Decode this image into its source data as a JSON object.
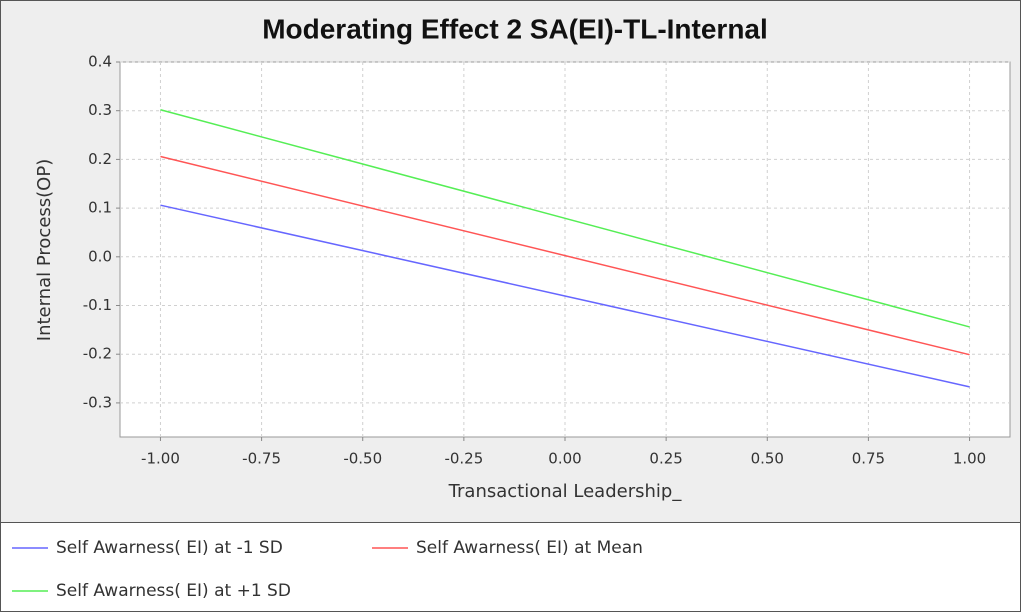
{
  "chart_data": {
    "type": "line",
    "title": "Moderating Effect 2 SA(EI)-TL-Internal",
    "xlabel": "Transactional Leadership_",
    "ylabel": "Internal Process(OP)",
    "x": [
      -1,
      1
    ],
    "series": [
      {
        "name": "Self Awarness( EI) at -1 SD",
        "color": "#6666ff",
        "values": [
          0.106,
          -0.267
        ]
      },
      {
        "name": "Self Awarness( EI) at Mean",
        "color": "#ff5555",
        "values": [
          0.206,
          -0.201
        ]
      },
      {
        "name": "Self Awarness( EI) at +1 SD",
        "color": "#55ee55",
        "values": [
          0.302,
          -0.144
        ]
      }
    ],
    "xlim": [
      -1.1,
      1.1
    ],
    "xticks": [
      {
        "value": -1,
        "label": "-1.00"
      },
      {
        "value": -0.75,
        "label": "-0.75"
      },
      {
        "value": -0.5,
        "label": "-0.50"
      },
      {
        "value": -0.25,
        "label": "-0.25"
      },
      {
        "value": 0,
        "label": "0.00"
      },
      {
        "value": 0.25,
        "label": "0.25"
      },
      {
        "value": 0.5,
        "label": "0.50"
      },
      {
        "value": 0.75,
        "label": "0.75"
      },
      {
        "value": 1,
        "label": "1.00"
      }
    ],
    "ylim": [
      -0.37,
      0.4
    ],
    "yticks": [
      0.4,
      0.3,
      0.2,
      0.1,
      {
        "value": 0,
        "label": "0.0"
      },
      -0.1,
      -0.2,
      -0.3
    ],
    "grid": true
  }
}
